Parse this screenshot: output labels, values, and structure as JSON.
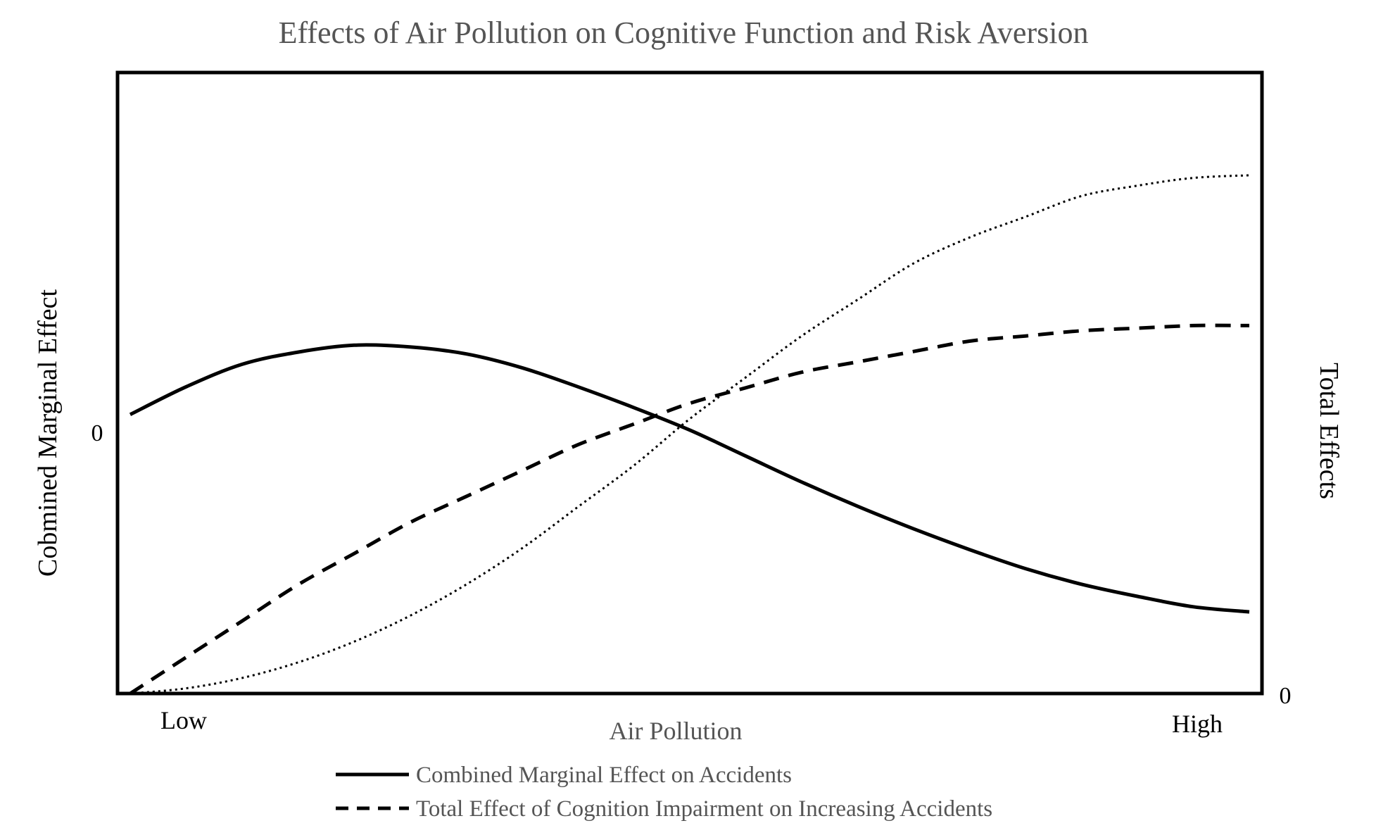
{
  "chart_data": {
    "type": "line",
    "title": "Effects of Air Pollution on Cognitive Function and Risk Aversion",
    "xlabel": "Air Pollution",
    "ylabel_left": "Cobmined Marginal Effect",
    "ylabel_right": "Total Effects",
    "x_tick_labels": {
      "low": "Low",
      "high": "High"
    },
    "left_zero_label": "0",
    "right_zero_label": "0",
    "xlim": [
      0,
      1
    ],
    "ylim_left": [
      -1,
      1
    ],
    "ylim_right": [
      0,
      1
    ],
    "grid": false,
    "legend_position": "bottom",
    "series": [
      {
        "name": "Combined Marginal Effect on Accidents",
        "axis": "left",
        "style": "solid",
        "x": [
          0.0,
          0.05,
          0.1,
          0.15,
          0.2,
          0.25,
          0.3,
          0.35,
          0.4,
          0.45,
          0.5,
          0.55,
          0.6,
          0.65,
          0.7,
          0.75,
          0.8,
          0.85,
          0.9,
          0.95,
          1.0
        ],
        "y": [
          0.05,
          0.21,
          0.34,
          0.41,
          0.45,
          0.44,
          0.4,
          0.32,
          0.21,
          0.09,
          -0.04,
          -0.19,
          -0.34,
          -0.48,
          -0.61,
          -0.73,
          -0.84,
          -0.93,
          -1.0,
          -1.06,
          -1.09
        ]
      },
      {
        "name": "Total Effect of Cognition Impairment on Increasing Accidents",
        "axis": "right",
        "style": "dashed",
        "x": [
          0.0,
          0.05,
          0.1,
          0.15,
          0.2,
          0.25,
          0.3,
          0.35,
          0.4,
          0.45,
          0.5,
          0.55,
          0.6,
          0.65,
          0.7,
          0.75,
          0.8,
          0.85,
          0.9,
          0.95,
          1.0
        ],
        "y": [
          0.0,
          0.07,
          0.14,
          0.21,
          0.27,
          0.33,
          0.38,
          0.43,
          0.48,
          0.52,
          0.56,
          0.59,
          0.62,
          0.64,
          0.66,
          0.68,
          0.69,
          0.7,
          0.705,
          0.71,
          0.71
        ]
      },
      {
        "axis": "right",
        "style": "dotted",
        "x": [
          0.0,
          0.05,
          0.1,
          0.15,
          0.2,
          0.25,
          0.3,
          0.35,
          0.4,
          0.45,
          0.5,
          0.55,
          0.6,
          0.65,
          0.7,
          0.75,
          0.8,
          0.85,
          0.9,
          0.95,
          1.0
        ],
        "y": [
          0.0,
          0.01,
          0.03,
          0.06,
          0.1,
          0.15,
          0.21,
          0.28,
          0.36,
          0.44,
          0.53,
          0.61,
          0.69,
          0.76,
          0.83,
          0.88,
          0.92,
          0.96,
          0.98,
          0.995,
          1.0
        ]
      }
    ]
  }
}
